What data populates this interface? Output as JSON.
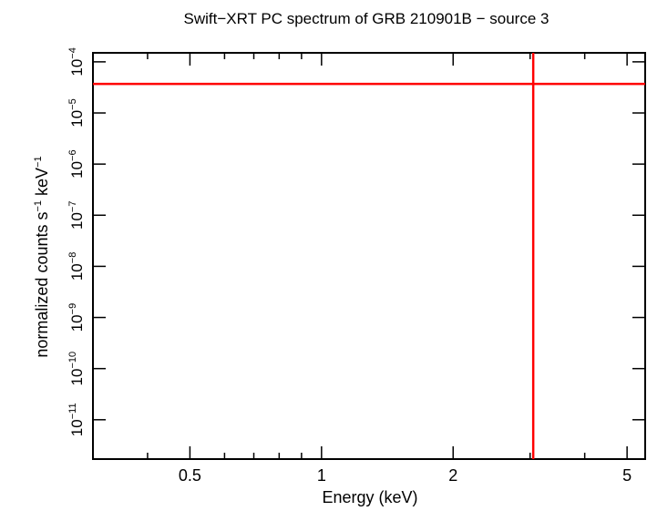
{
  "chart_data": {
    "type": "scatter",
    "title": "Swift−XRT PC spectrum of GRB 210901B − source 3",
    "xlabel": "Energy (keV)",
    "ylabel_parts": [
      "normalized counts s",
      "−1",
      " keV",
      "−1"
    ],
    "x_scale": "log",
    "y_scale": "log",
    "xlim": [
      0.3,
      5.5
    ],
    "ylim": [
      1.7e-12,
      0.00015
    ],
    "x_ticks": [
      {
        "value": 0.5,
        "label": "0.5"
      },
      {
        "value": 1,
        "label": "1"
      },
      {
        "value": 2,
        "label": "2"
      },
      {
        "value": 5,
        "label": "5"
      }
    ],
    "y_ticks": [
      {
        "value": 0.0001,
        "base": "10",
        "exp": "−4"
      },
      {
        "value": 1e-05,
        "base": "10",
        "exp": "−5"
      },
      {
        "value": 1e-06,
        "base": "10",
        "exp": "−6"
      },
      {
        "value": 1e-07,
        "base": "10",
        "exp": "−7"
      },
      {
        "value": 1e-08,
        "base": "10",
        "exp": "−8"
      },
      {
        "value": 1e-09,
        "base": "10",
        "exp": "−9"
      },
      {
        "value": 1e-10,
        "base": "10",
        "exp": "−10"
      },
      {
        "value": 1e-11,
        "base": "10",
        "exp": "−11"
      }
    ],
    "grid": false,
    "series": [
      {
        "color": "#ff0000",
        "points": [
          {
            "x": 3.05,
            "y": 3.7e-05,
            "xerr": [
              0.3,
              5.5
            ],
            "yerr": [
              1.7e-12,
              0.00015
            ]
          }
        ]
      }
    ]
  }
}
